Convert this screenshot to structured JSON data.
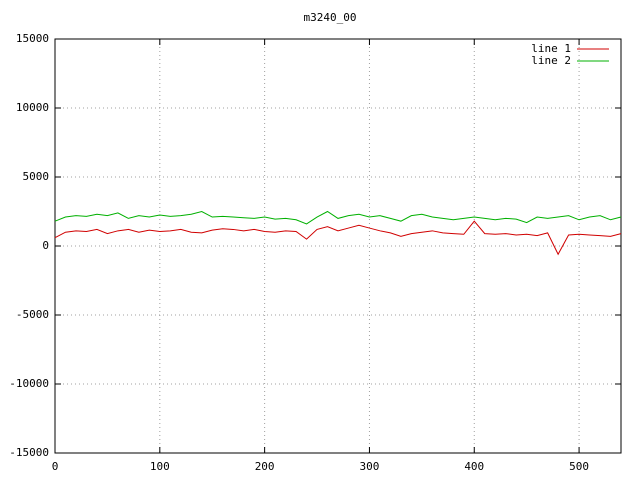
{
  "chart_data": {
    "type": "line",
    "title": "m3240_00",
    "x": [
      0,
      10,
      20,
      30,
      40,
      50,
      60,
      70,
      80,
      90,
      100,
      110,
      120,
      130,
      140,
      150,
      160,
      170,
      180,
      190,
      200,
      210,
      220,
      230,
      240,
      250,
      260,
      270,
      280,
      290,
      300,
      310,
      320,
      330,
      340,
      350,
      360,
      370,
      380,
      390,
      400,
      410,
      420,
      430,
      440,
      450,
      460,
      470,
      480,
      490,
      500,
      510,
      520,
      530,
      540
    ],
    "series": [
      {
        "name": "line 1",
        "color": "#d00000",
        "values": [
          600,
          1000,
          1100,
          1050,
          1200,
          900,
          1100,
          1200,
          1000,
          1150,
          1050,
          1100,
          1200,
          1000,
          950,
          1150,
          1250,
          1200,
          1100,
          1200,
          1050,
          1000,
          1100,
          1050,
          500,
          1200,
          1400,
          1100,
          1300,
          1500,
          1300,
          1100,
          950,
          700,
          900,
          1000,
          1100,
          950,
          900,
          850,
          1800,
          900,
          850,
          900,
          800,
          850,
          750,
          950,
          -600,
          800,
          850,
          800,
          750,
          700,
          900
        ]
      },
      {
        "name": "line 2",
        "color": "#00b000",
        "values": [
          1800,
          2100,
          2200,
          2150,
          2300,
          2200,
          2400,
          2000,
          2200,
          2100,
          2250,
          2150,
          2200,
          2300,
          2500,
          2100,
          2150,
          2100,
          2050,
          2000,
          2100,
          1950,
          2000,
          1900,
          1600,
          2100,
          2500,
          2000,
          2200,
          2300,
          2100,
          2200,
          2000,
          1800,
          2200,
          2300,
          2100,
          2000,
          1900,
          2000,
          2100,
          2000,
          1900,
          2000,
          1950,
          1700,
          2100,
          2000,
          2100,
          2200,
          1900,
          2100,
          2200,
          1900,
          2100
        ]
      }
    ],
    "xlim": [
      0,
      540
    ],
    "xticks": [
      0,
      100,
      200,
      300,
      400,
      500
    ],
    "ylim": [
      -15000,
      15000
    ],
    "yticks": [
      -15000,
      -10000,
      -5000,
      0,
      5000,
      10000,
      15000
    ],
    "grid": true,
    "legend": "top-right"
  }
}
